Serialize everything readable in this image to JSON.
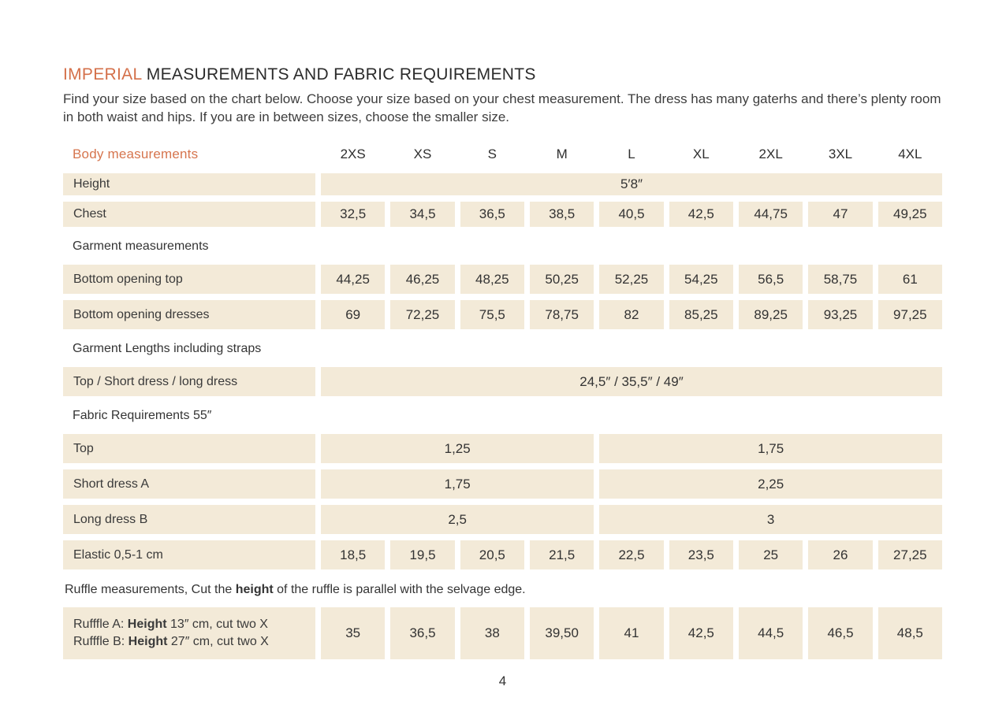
{
  "accent_color": "#d4704a",
  "cell_background": "#f3ead8",
  "title": {
    "accent": "IMPERIAL",
    "rest": "MEASUREMENTS AND FABRIC REQUIREMENTS"
  },
  "intro": "Find your size based on the chart below. Choose your size based on your chest measurement. The dress has many gaterhs and there’s plenty room in both waist and hips. If you are in between sizes, choose the smaller size.",
  "table": {
    "header": {
      "label": "Body measurements",
      "sizes": [
        "2XS",
        "XS",
        "S",
        "M",
        "L",
        "XL",
        "2XL",
        "3XL",
        "4XL"
      ]
    },
    "rows": [
      {
        "type": "data",
        "name": "height",
        "size": "sm",
        "label": "Height",
        "cells": [
          {
            "text": "5′8″",
            "span": 9
          }
        ]
      },
      {
        "type": "data",
        "name": "chest",
        "size": "md",
        "label": "Chest",
        "cells": [
          {
            "text": "32,5"
          },
          {
            "text": "34,5"
          },
          {
            "text": "36,5"
          },
          {
            "text": "38,5"
          },
          {
            "text": "40,5"
          },
          {
            "text": "42,5"
          },
          {
            "text": "44,75"
          },
          {
            "text": "47"
          },
          {
            "text": "49,25"
          }
        ]
      },
      {
        "type": "section",
        "label": "Garment measurements"
      },
      {
        "type": "data",
        "name": "bottom-opening-top",
        "label": "Bottom opening top",
        "cells": [
          {
            "text": "44,25"
          },
          {
            "text": "46,25"
          },
          {
            "text": "48,25"
          },
          {
            "text": "50,25"
          },
          {
            "text": "52,25"
          },
          {
            "text": "54,25"
          },
          {
            "text": "56,5"
          },
          {
            "text": "58,75"
          },
          {
            "text": "61"
          }
        ]
      },
      {
        "type": "data",
        "name": "bottom-opening-dresses",
        "label": "Bottom opening dresses",
        "cells": [
          {
            "text": "69"
          },
          {
            "text": "72,25"
          },
          {
            "text": "75,5"
          },
          {
            "text": "78,75"
          },
          {
            "text": "82"
          },
          {
            "text": "85,25"
          },
          {
            "text": "89,25"
          },
          {
            "text": "93,25"
          },
          {
            "text": "97,25"
          }
        ]
      },
      {
        "type": "section",
        "label": "Garment Lengths including straps"
      },
      {
        "type": "data",
        "name": "garment-lengths",
        "label": "Top / Short dress / long dress",
        "cells": [
          {
            "text": "24,5″ / 35,5″ / 49″",
            "span": 9
          }
        ]
      },
      {
        "type": "section",
        "label": "Fabric Requirements 55″"
      },
      {
        "type": "data",
        "name": "fabric-top",
        "label": "Top",
        "cells": [
          {
            "text": "1,25",
            "span": 4
          },
          {
            "text": "1,75",
            "span": 5
          }
        ]
      },
      {
        "type": "data",
        "name": "fabric-short-dress-a",
        "label": "Short dress A",
        "cells": [
          {
            "text": "1,75",
            "span": 4
          },
          {
            "text": "2,25",
            "span": 5
          }
        ]
      },
      {
        "type": "data",
        "name": "fabric-long-dress-b",
        "label": "Long dress B",
        "cells": [
          {
            "text": "2,5",
            "span": 4
          },
          {
            "text": "3",
            "span": 5
          }
        ]
      },
      {
        "type": "data",
        "name": "elastic",
        "label": "Elastic 0,5-1 cm",
        "cells": [
          {
            "text": "18,5"
          },
          {
            "text": "19,5"
          },
          {
            "text": "20,5"
          },
          {
            "text": "21,5"
          },
          {
            "text": "22,5"
          },
          {
            "text": "23,5"
          },
          {
            "text": "25"
          },
          {
            "text": "26"
          },
          {
            "text": "27,25"
          }
        ]
      },
      {
        "type": "note",
        "name": "ruffle-note",
        "parts": [
          {
            "t": "Ruffle measurements, Cut the "
          },
          {
            "t": "height",
            "b": true
          },
          {
            "t": " of the ruffle is parallel with the selvage edge."
          }
        ]
      },
      {
        "type": "data",
        "name": "ruffle",
        "size": "lg",
        "label_lines": [
          [
            {
              "t": "Rufffle A: "
            },
            {
              "t": "Height",
              "b": true
            },
            {
              "t": " 13″ cm, cut two X"
            }
          ],
          [
            {
              "t": "Rufffle B: "
            },
            {
              "t": "Height",
              "b": true
            },
            {
              "t": " 27″ cm, cut two X"
            }
          ]
        ],
        "cells": [
          {
            "text": "35"
          },
          {
            "text": "36,5"
          },
          {
            "text": "38"
          },
          {
            "text": "39,50"
          },
          {
            "text": "41"
          },
          {
            "text": "42,5"
          },
          {
            "text": "44,5"
          },
          {
            "text": "46,5"
          },
          {
            "text": "48,5"
          }
        ]
      }
    ]
  },
  "page_number": "4"
}
